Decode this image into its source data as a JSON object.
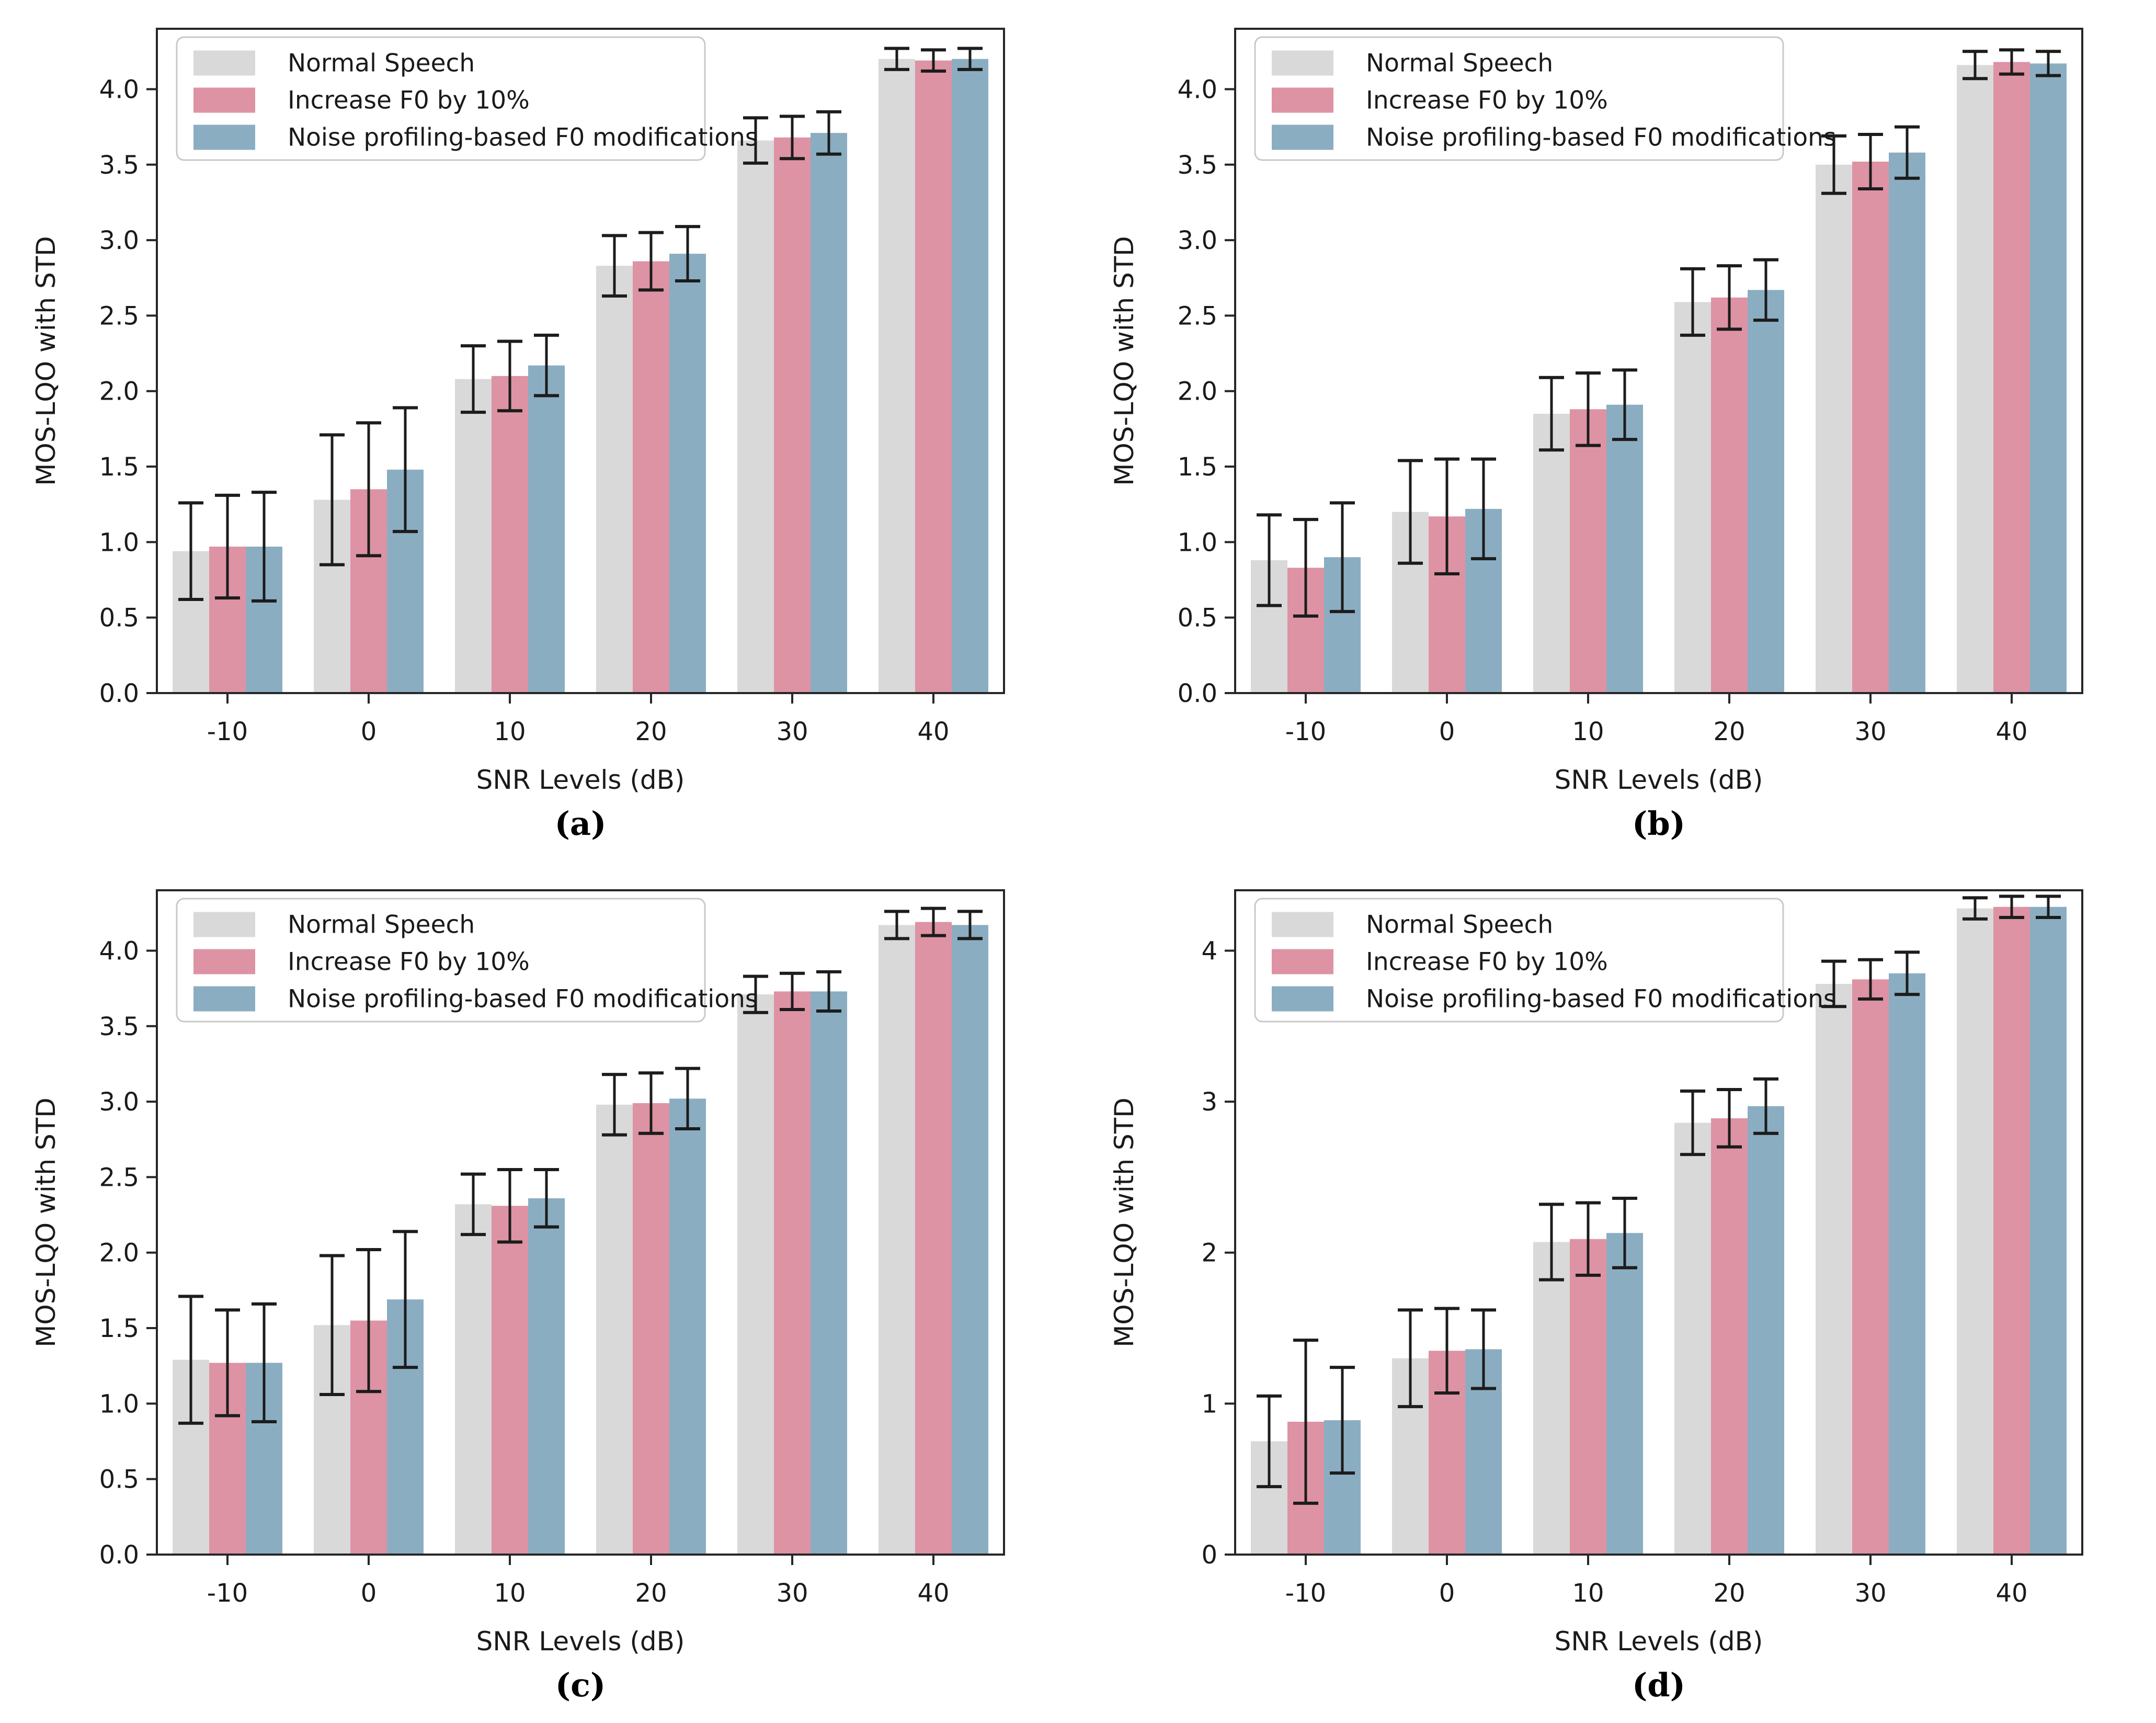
{
  "page": {
    "background": "#ffffff"
  },
  "colors": {
    "normal_speech": "#d9d9d9",
    "increase_f0": "#dd93a4",
    "noise_profiling": "#8badc1",
    "error_bar": "#1c1c1c",
    "axis": "#262626",
    "text": "#1a1a1a",
    "legend_border": "#c9c9c9",
    "legend_bg": "#ffffff"
  },
  "axes": {
    "xlabel": "SNR Levels (dB)",
    "ylabel": "MOS-LQO with STD"
  },
  "legend": {
    "position": "upper-left",
    "items": [
      {
        "label": "Normal Speech",
        "color": "#d9d9d9"
      },
      {
        "label": "Increase F0 by 10%",
        "color": "#dd93a4"
      },
      {
        "label": "Noise profiling-based F0 modifications",
        "color": "#8badc1"
      }
    ]
  },
  "chart_data": [
    {
      "id": "a",
      "caption": "(a)",
      "type": "bar",
      "xlabel": "SNR Levels (dB)",
      "ylabel": "MOS-LQO with STD",
      "categories": [
        "-10",
        "0",
        "10",
        "20",
        "30",
        "40"
      ],
      "ylim": [
        0,
        4.4
      ],
      "grid": false,
      "y_ticks": {
        "values": [
          0,
          0.5,
          1,
          1.5,
          2,
          2.5,
          3,
          3.5,
          4
        ],
        "labels": [
          "0.0",
          "0.5",
          "1.0",
          "1.5",
          "2.0",
          "2.5",
          "3.0",
          "3.5",
          "4.0"
        ]
      },
      "series": [
        {
          "name": "Normal Speech",
          "color": "#d9d9d9",
          "values": [
            0.94,
            1.28,
            2.08,
            2.83,
            3.66,
            4.2
          ],
          "std": [
            0.32,
            0.43,
            0.22,
            0.2,
            0.15,
            0.07
          ]
        },
        {
          "name": "Increase F0 by 10%",
          "color": "#dd93a4",
          "values": [
            0.97,
            1.35,
            2.1,
            2.86,
            3.68,
            4.19
          ],
          "std": [
            0.34,
            0.44,
            0.23,
            0.19,
            0.14,
            0.07
          ]
        },
        {
          "name": "Noise profiling-based F0 modifications",
          "color": "#8badc1",
          "values": [
            0.97,
            1.48,
            2.17,
            2.91,
            3.71,
            4.2
          ],
          "std": [
            0.36,
            0.41,
            0.2,
            0.18,
            0.14,
            0.07
          ]
        }
      ]
    },
    {
      "id": "b",
      "caption": "(b)",
      "type": "bar",
      "xlabel": "SNR Levels (dB)",
      "ylabel": "MOS-LQO with STD",
      "categories": [
        "-10",
        "0",
        "10",
        "20",
        "30",
        "40"
      ],
      "ylim": [
        0,
        4.4
      ],
      "grid": false,
      "y_ticks": {
        "values": [
          0,
          0.5,
          1,
          1.5,
          2,
          2.5,
          3,
          3.5,
          4
        ],
        "labels": [
          "0.0",
          "0.5",
          "1.0",
          "1.5",
          "2.0",
          "2.5",
          "3.0",
          "3.5",
          "4.0"
        ]
      },
      "series": [
        {
          "name": "Normal Speech",
          "color": "#d9d9d9",
          "values": [
            0.88,
            1.2,
            1.85,
            2.59,
            3.5,
            4.16
          ],
          "std": [
            0.3,
            0.34,
            0.24,
            0.22,
            0.19,
            0.09
          ]
        },
        {
          "name": "Increase F0 by 10%",
          "color": "#dd93a4",
          "values": [
            0.83,
            1.17,
            1.88,
            2.62,
            3.52,
            4.18
          ],
          "std": [
            0.32,
            0.38,
            0.24,
            0.21,
            0.18,
            0.08
          ]
        },
        {
          "name": "Noise profiling-based F0 modifications",
          "color": "#8badc1",
          "values": [
            0.9,
            1.22,
            1.91,
            2.67,
            3.58,
            4.17
          ],
          "std": [
            0.36,
            0.33,
            0.23,
            0.2,
            0.17,
            0.08
          ]
        }
      ]
    },
    {
      "id": "c",
      "caption": "(c)",
      "type": "bar",
      "xlabel": "SNR Levels (dB)",
      "ylabel": "MOS-LQO with STD",
      "categories": [
        "-10",
        "0",
        "10",
        "20",
        "30",
        "40"
      ],
      "ylim": [
        0,
        4.4
      ],
      "grid": false,
      "y_ticks": {
        "values": [
          0,
          0.5,
          1,
          1.5,
          2,
          2.5,
          3,
          3.5,
          4
        ],
        "labels": [
          "0.0",
          "0.5",
          "1.0",
          "1.5",
          "2.0",
          "2.5",
          "3.0",
          "3.5",
          "4.0"
        ]
      },
      "series": [
        {
          "name": "Normal Speech",
          "color": "#d9d9d9",
          "values": [
            1.29,
            1.52,
            2.32,
            2.98,
            3.71,
            4.17
          ],
          "std": [
            0.42,
            0.46,
            0.2,
            0.2,
            0.12,
            0.09
          ]
        },
        {
          "name": "Increase F0 by 10%",
          "color": "#dd93a4",
          "values": [
            1.27,
            1.55,
            2.31,
            2.99,
            3.73,
            4.19
          ],
          "std": [
            0.35,
            0.47,
            0.24,
            0.2,
            0.12,
            0.09
          ]
        },
        {
          "name": "Noise profiling-based F0 modifications",
          "color": "#8badc1",
          "values": [
            1.27,
            1.69,
            2.36,
            3.02,
            3.73,
            4.17
          ],
          "std": [
            0.39,
            0.45,
            0.19,
            0.2,
            0.13,
            0.09
          ]
        }
      ]
    },
    {
      "id": "d",
      "caption": "(d)",
      "type": "bar",
      "xlabel": "SNR Levels (dB)",
      "ylabel": "MOS-LQO with STD",
      "categories": [
        "-10",
        "0",
        "10",
        "20",
        "30",
        "40"
      ],
      "ylim": [
        0,
        4.4
      ],
      "grid": false,
      "y_ticks": {
        "values": [
          0,
          1,
          2,
          3,
          4
        ],
        "labels": [
          "0",
          "1",
          "2",
          "3",
          "4"
        ]
      },
      "series": [
        {
          "name": "Normal Speech",
          "color": "#d9d9d9",
          "values": [
            0.75,
            1.3,
            2.07,
            2.86,
            3.78,
            4.28
          ],
          "std": [
            0.3,
            0.32,
            0.25,
            0.21,
            0.15,
            0.07
          ]
        },
        {
          "name": "Increase F0 by 10%",
          "color": "#dd93a4",
          "values": [
            0.88,
            1.35,
            2.09,
            2.89,
            3.81,
            4.29
          ],
          "std": [
            0.54,
            0.28,
            0.24,
            0.19,
            0.13,
            0.07
          ]
        },
        {
          "name": "Noise profiling-based F0 modifications",
          "color": "#8badc1",
          "values": [
            0.89,
            1.36,
            2.13,
            2.97,
            3.85,
            4.29
          ],
          "std": [
            0.35,
            0.26,
            0.23,
            0.18,
            0.14,
            0.07
          ]
        }
      ]
    }
  ]
}
